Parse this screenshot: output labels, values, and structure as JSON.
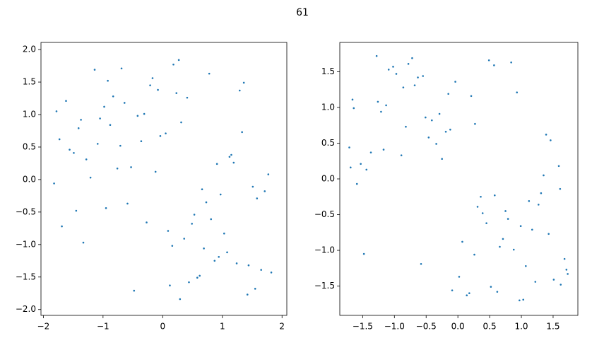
{
  "title": "61",
  "chart_data": [
    {
      "type": "scatter",
      "color": "#1f77b4",
      "x": [
        -1.62,
        -0.95,
        0.31,
        1.44,
        -0.12,
        0.78,
        -1.33,
        1.12,
        -0.48,
        0.05,
        1.71,
        -1.78,
        0.62,
        -0.71,
        1.29,
        -0.27,
        0.94,
        -1.05,
        0.18,
        1.58,
        -1.49,
        0.44,
        -0.83,
        1.03,
        -0.04,
        -1.21,
        0.69,
        1.36,
        -0.59,
        0.27,
        -1.69,
        0.87,
        -0.36,
        1.51,
        -0.98,
        0.12,
        1.19,
        -1.41,
        0.53,
        -0.17,
        1.65,
        -0.76,
        0.36,
        -1.14,
        0.97,
        -0.42,
        1.42,
        -1.56,
        0.23,
        0.81,
        -0.88,
        1.08,
        -0.21,
        -1.28,
        0.58,
        1.77,
        -0.64,
        0.09,
        -1.73,
        1.24,
        -0.31,
        0.73,
        -1.09,
        1.55,
        0.41,
        -0.53,
        -1.45,
        0.16,
        1.33,
        -0.92,
        0.66,
        -0.08,
        1.82,
        -1.37,
        0.49,
        -0.69,
        1.15,
        -1.82,
        0.29,
        0.91
      ],
      "y": [
        1.21,
        -0.44,
        0.88,
        -1.32,
        0.12,
        1.63,
        -0.97,
        0.35,
        -1.71,
        0.71,
        -0.18,
        1.05,
        -1.48,
        0.52,
        1.37,
        -0.66,
        -1.19,
        0.94,
        1.77,
        -0.29,
        0.41,
        -1.58,
        1.28,
        -0.83,
        0.67,
        0.03,
        -1.06,
        1.49,
        -0.37,
        1.84,
        -0.72,
        -1.25,
        0.59,
        -0.11,
        1.12,
        -1.63,
        0.26,
        0.79,
        -0.54,
        1.56,
        -1.39,
        0.17,
        -0.91,
        1.69,
        -0.23,
        0.98,
        -1.77,
        0.46,
        1.33,
        -0.61,
        0.84,
        -1.12,
        1.45,
        0.31,
        -1.51,
        0.08,
        1.18,
        -0.79,
        0.62,
        -1.29,
        1.01,
        -0.35,
        0.55,
        -1.68,
        1.26,
        0.19,
        -0.48,
        -1.02,
        0.73,
        1.52,
        -0.15,
        1.38,
        -1.43,
        0.92,
        -0.68,
        1.71,
        0.38,
        -0.06,
        -1.84,
        0.24
      ],
      "xlim": [
        -2.04,
        2.08
      ],
      "ylim": [
        -2.09,
        2.11
      ],
      "xticks": [
        {
          "value": -2,
          "label": "−2"
        },
        {
          "value": -1,
          "label": "−1"
        },
        0,
        1,
        2
      ],
      "yticks": [
        {
          "value": -2,
          "label": "−2.0"
        },
        {
          "value": -1.5,
          "label": "−1.5"
        },
        {
          "value": -1,
          "label": "−1.0"
        },
        {
          "value": -0.5,
          "label": "−0.5"
        },
        {
          "value": 0,
          "label": "0.0"
        },
        0.5,
        {
          "value": 1,
          "label": "1.0"
        },
        1.5,
        {
          "value": 2,
          "label": "2.0"
        }
      ]
    },
    {
      "type": "scatter",
      "color": "#1f77b4",
      "x": [
        1.12,
        -0.63,
        0.27,
        -1.48,
        0.84,
        -0.09,
        1.59,
        -1.21,
        0.45,
        -0.86,
        0.02,
        1.35,
        -1.66,
        0.71,
        -0.34,
        1.03,
        -1.02,
        0.58,
        -0.19,
        1.68,
        -1.37,
        0.39,
        -0.72,
        1.22,
        -0.51,
        0.93,
        -1.59,
        0.14,
        1.46,
        -0.97,
        0.66,
        -0.25,
        1.71,
        -1.13,
        0.31,
        -0.78,
        1.17,
        -1.44,
        0.52,
        -0.04,
        1.39,
        -1.28,
        0.79,
        -0.58,
        0.21,
        1.61,
        -1.71,
        0.97,
        -0.41,
        0.07,
        -1.09,
        1.27,
        -0.29,
        0.62,
        -1.53,
        0.88,
        -0.68,
        1.51,
        -0.12,
        0.36,
        -1.64,
        1.07,
        -0.89,
        0.49,
        1.43,
        -0.46,
        0.18,
        -1.26,
        0.75,
        -1.69,
        1.62,
        -0.15,
        0.99,
        -1.17,
        0.26,
        -0.55,
        1.31,
        -0.82,
        0.57,
        1.73
      ],
      "y": [
        -0.31,
        1.42,
        0.77,
        -1.05,
        1.63,
        -1.56,
        0.18,
        0.94,
        -0.62,
        1.28,
        -1.37,
        0.05,
        1.11,
        -0.84,
        0.49,
        -1.69,
        1.57,
        -0.23,
        0.66,
        -1.12,
        0.37,
        -0.48,
        1.69,
        -1.44,
        0.86,
        1.21,
        -0.07,
        -1.63,
        0.54,
        1.47,
        -0.95,
        0.28,
        -1.27,
        1.03,
        -0.39,
        1.61,
        -0.71,
        0.13,
        -1.51,
        1.36,
        0.62,
        1.72,
        -0.56,
        -1.19,
        1.16,
        -0.14,
        0.44,
        -1.7,
        0.82,
        -0.88,
        1.53,
        -0.36,
        0.91,
        -1.58,
        0.21,
        -0.99,
        1.31,
        -1.41,
        0.69,
        -0.25,
        0.99,
        -1.22,
        0.33,
        1.66,
        -0.77,
        0.58,
        -1.6,
        1.08,
        -0.45,
        0.16,
        -1.48,
        1.19,
        -0.66,
        0.41,
        -1.06,
        1.44,
        -0.2,
        0.73,
        1.59,
        -1.33
      ],
      "xlim": [
        -1.86,
        1.89
      ],
      "ylim": [
        -1.91,
        1.91
      ],
      "xticks": [
        {
          "value": -1.5,
          "label": "−1.5"
        },
        {
          "value": -1,
          "label": "−1.0"
        },
        {
          "value": -0.5,
          "label": "−0.5"
        },
        {
          "value": 0,
          "label": "0.0"
        },
        0.5,
        {
          "value": 1,
          "label": "1.0"
        },
        1.5
      ],
      "yticks": [
        {
          "value": -1.5,
          "label": "−1.5"
        },
        {
          "value": -1,
          "label": "−1.0"
        },
        {
          "value": -0.5,
          "label": "−0.5"
        },
        {
          "value": 0,
          "label": "0.0"
        },
        0.5,
        {
          "value": 1,
          "label": "1.0"
        },
        1.5
      ]
    }
  ]
}
